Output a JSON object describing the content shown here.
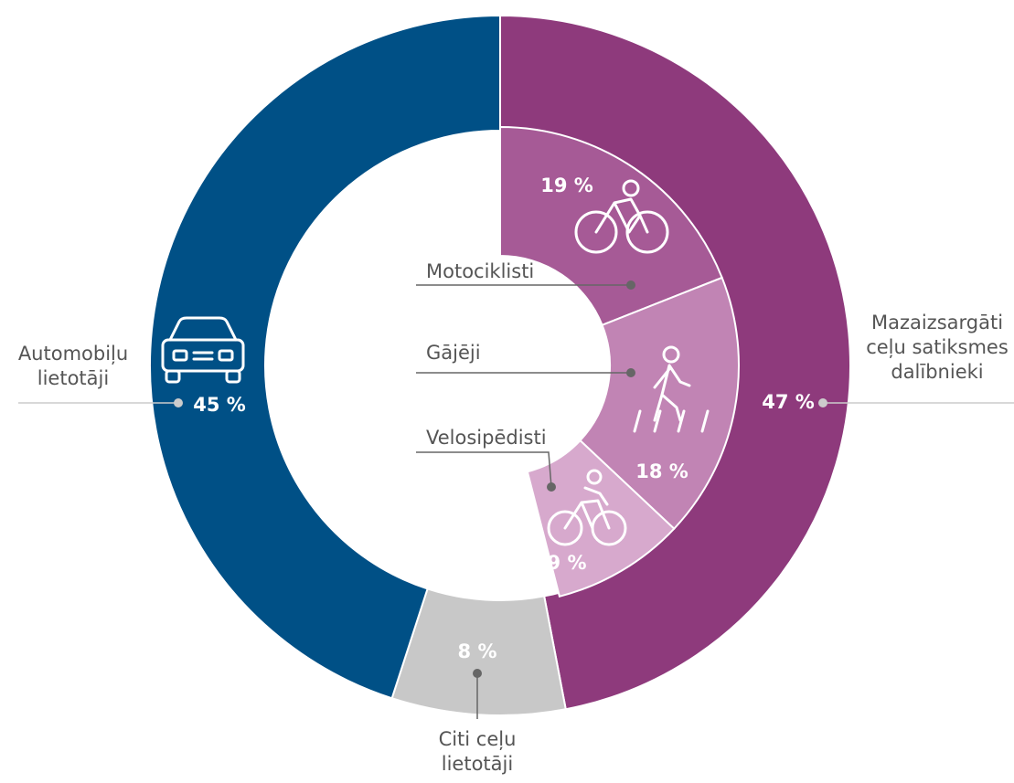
{
  "chart_data": {
    "type": "donut",
    "rings": [
      {
        "categories": [
          "Mazaizsargāti ceļu satiksmes dalībnieki",
          "Citi ceļu lietotāji",
          "Automobiļu lietotāji"
        ],
        "values": [
          47,
          8,
          45
        ],
        "value_labels": [
          "47 %",
          "8 %",
          "45 %"
        ],
        "colors": [
          "#8e3a7c",
          "#c8c8c8",
          "#005086"
        ]
      },
      {
        "categories": [
          "Motociklisti",
          "Gājēji",
          "Velosipēdisti"
        ],
        "values": [
          19,
          18,
          9
        ],
        "value_labels": [
          "19 %",
          "18 %",
          "9 %"
        ],
        "colors": [
          "#a65a96",
          "#c184b4",
          "#d7a9cd"
        ]
      }
    ]
  }
}
